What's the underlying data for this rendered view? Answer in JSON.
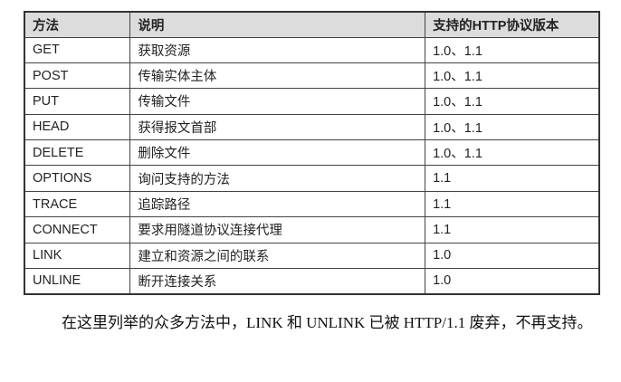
{
  "table": {
    "headers": [
      "方法",
      "说明",
      "支持的HTTP协议版本"
    ],
    "rows": [
      [
        "GET",
        "获取资源",
        "1.0、1.1"
      ],
      [
        "POST",
        "传输实体主体",
        "1.0、1.1"
      ],
      [
        "PUT",
        "传输文件",
        "1.0、1.1"
      ],
      [
        "HEAD",
        "获得报文首部",
        "1.0、1.1"
      ],
      [
        "DELETE",
        "删除文件",
        "1.0、1.1"
      ],
      [
        "OPTIONS",
        "询问支持的方法",
        "1.1"
      ],
      [
        "TRACE",
        "追踪路径",
        "1.1"
      ],
      [
        "CONNECT",
        "要求用隧道协议连接代理",
        "1.1"
      ],
      [
        "LINK",
        "建立和资源之间的联系",
        "1.0"
      ],
      [
        "UNLINE",
        "断开连接关系",
        "1.0"
      ]
    ]
  },
  "paragraph": "在这里列举的众多方法中，LINK 和 UNLINK 已被 HTTP/1.1 废弃，不再支持。"
}
